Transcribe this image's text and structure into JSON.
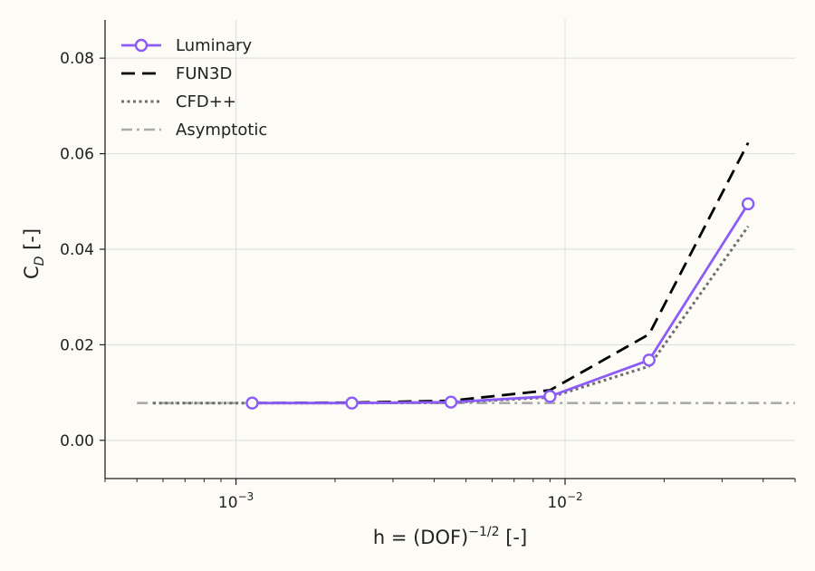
{
  "chart_data": {
    "type": "line",
    "x_scale": "log",
    "xlim": [
      0.0004,
      0.05
    ],
    "ylim": [
      -0.008,
      0.088
    ],
    "x_ticks": [
      {
        "value": 0.001,
        "base": "10",
        "exp": "−3"
      },
      {
        "value": 0.01,
        "base": "10",
        "exp": "−2"
      }
    ],
    "y_ticks": [
      {
        "value": 0.0,
        "label": "0.00"
      },
      {
        "value": 0.02,
        "label": "0.02"
      },
      {
        "value": 0.04,
        "label": "0.04"
      },
      {
        "value": 0.06,
        "label": "0.06"
      },
      {
        "value": 0.08,
        "label": "0.08"
      }
    ],
    "xlabel": {
      "main": "h = (DOF)",
      "sup": "−1/2",
      "tail": " [-]"
    },
    "ylabel": {
      "main": "C",
      "sub": "D",
      "tail": " [-]"
    },
    "grid": true,
    "legend_position": "upper-left",
    "series": [
      {
        "name": "Luminary",
        "color": "#8b5cf6",
        "style": "solid-marker",
        "x": [
          0.00112,
          0.00225,
          0.0045,
          0.009,
          0.018,
          0.036
        ],
        "y": [
          0.0078,
          0.0078,
          0.008,
          0.0092,
          0.0168,
          0.0495
        ]
      },
      {
        "name": "FUN3D",
        "color": "#000000",
        "style": "dashed",
        "x": [
          0.00112,
          0.00225,
          0.0045,
          0.009,
          0.018,
          0.036
        ],
        "y": [
          0.0078,
          0.0079,
          0.0083,
          0.0105,
          0.0222,
          0.0623
        ]
      },
      {
        "name": "CFD++",
        "color": "#6e6e6e",
        "style": "dotted",
        "x": [
          0.00056,
          0.00112,
          0.00225,
          0.0045,
          0.009,
          0.018,
          0.036
        ],
        "y": [
          0.0078,
          0.0078,
          0.0078,
          0.0079,
          0.009,
          0.0155,
          0.0448
        ]
      },
      {
        "name": "Asymptotic",
        "color": "#aaaaaa",
        "style": "dashdot",
        "x": [
          0.0005,
          0.05
        ],
        "y": [
          0.0078,
          0.0078
        ]
      }
    ]
  }
}
